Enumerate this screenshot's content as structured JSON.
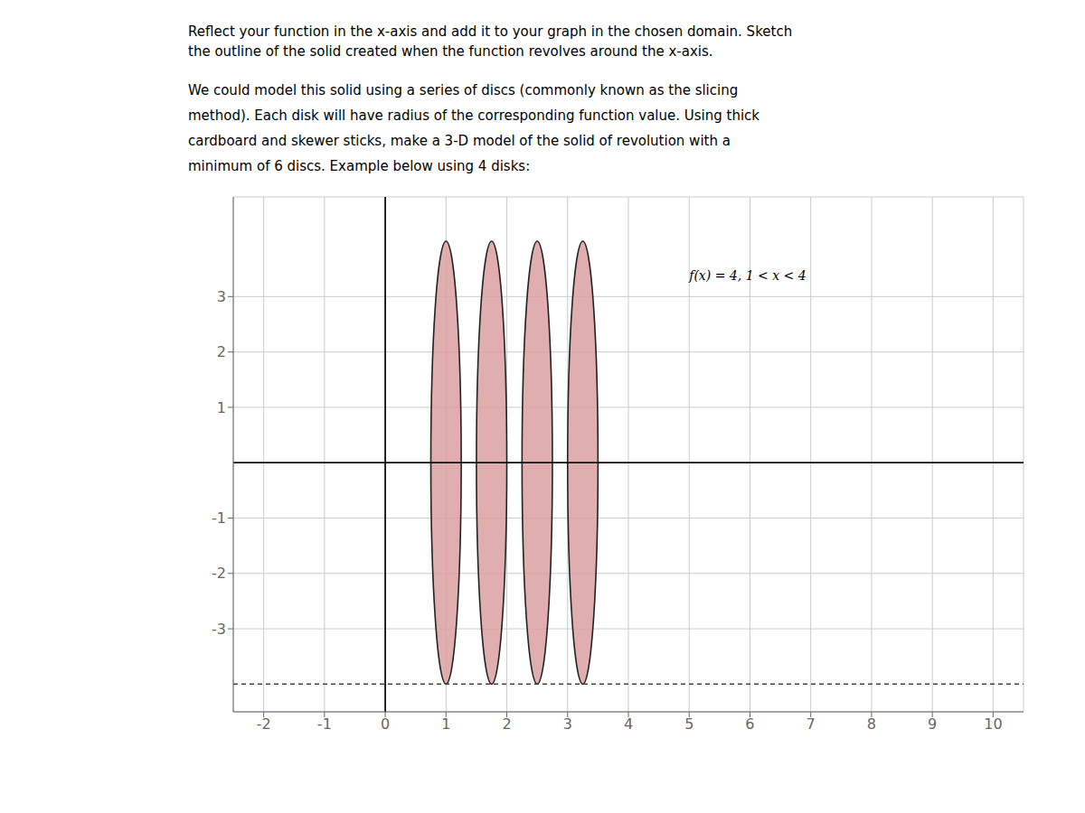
{
  "chart_data": {
    "type": "disc",
    "title": [
      "Reflect your function in the x-axis and add it to your graph in the chosen domain. Sketch",
      "the outline of the solid created when the function revolves around the x-axis."
    ],
    "subtitle": [
      "We could model this solid using a series of discs (commonly known as the slicing",
      "method). Each disk will have radius of the corresponding function value. Using thick",
      "cardboard and skewer sticks, make a 3-D model of the solid of revolution with a",
      "minimum of 6 discs. Example below using 4 disks:"
    ],
    "annotations": [
      {
        "text": "f(x) = 4,  1 < x < 4",
        "x": 5.0,
        "y": 3.3
      }
    ],
    "discs": {
      "x": [
        1.0,
        1.75,
        2.5,
        3.25
      ],
      "y": [
        0,
        0,
        0,
        0
      ],
      "width": 0.5,
      "height": 8.0,
      "color": "#dba0a0"
    },
    "reference_lines": [
      {
        "y": -4,
        "line_style": "dashed"
      }
    ],
    "xlim": [
      -2.5,
      10.5
    ],
    "ylim": [
      -4.5,
      4.8
    ],
    "xticks": [
      -2,
      -1,
      0,
      1,
      2,
      3,
      4,
      5,
      6,
      7,
      8,
      9,
      10
    ],
    "yticks": [
      -3,
      -2,
      -1,
      1,
      2,
      3
    ],
    "grid": true
  }
}
